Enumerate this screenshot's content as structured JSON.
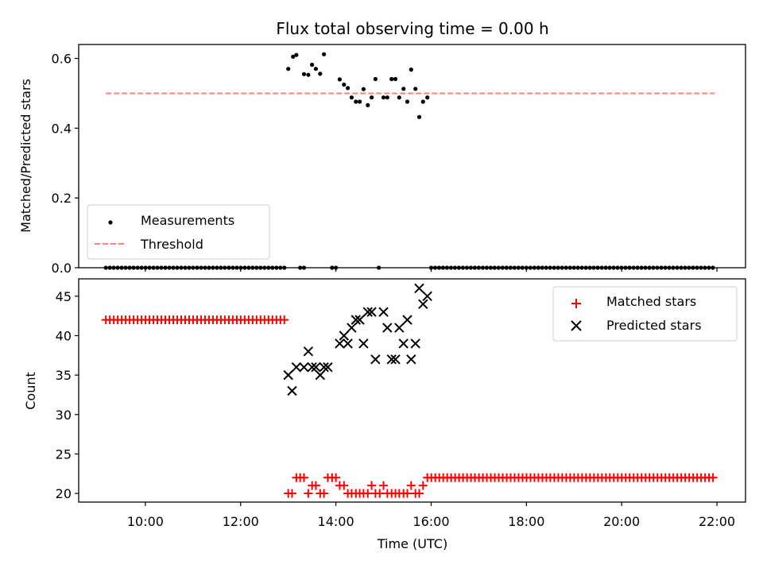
{
  "chart_data": [
    {
      "type": "scatter",
      "title": "Flux total observing time = 0.00 h",
      "xlabel": "",
      "ylabel": "Matched/Predicted stars",
      "xlim": [
        8.6,
        22.6
      ],
      "ylim": [
        0.0,
        0.64
      ],
      "yticks": [
        0.0,
        0.2,
        0.4,
        0.6
      ],
      "ytick_labels": [
        "0.0",
        "0.2",
        "0.4",
        "0.6"
      ],
      "grid": false,
      "legend": {
        "placement": "lower-left",
        "entries": [
          "Measurements",
          "Threshold"
        ]
      },
      "series": [
        {
          "name": "Measurements",
          "color": "#000000",
          "marker": "dot",
          "x_units": "hours (UTC)",
          "zero_points": {
            "x_start": 9.17,
            "x_end": 12.93,
            "step": 0.0833
          },
          "zero_points_extra": [
            13.25,
            13.33,
            13.92,
            14.0,
            14.9
          ],
          "zero_points_late": {
            "x_start": 16.0,
            "x_end": 21.95,
            "step": 0.0833
          },
          "points": [
            [
              13.0,
              0.57
            ],
            [
              13.1,
              0.605
            ],
            [
              13.17,
              0.61
            ],
            [
              13.33,
              0.555
            ],
            [
              13.42,
              0.553
            ],
            [
              13.5,
              0.582
            ],
            [
              13.58,
              0.57
            ],
            [
              13.67,
              0.556
            ],
            [
              13.75,
              0.612
            ],
            [
              14.08,
              0.54
            ],
            [
              14.17,
              0.525
            ],
            [
              14.25,
              0.515
            ],
            [
              14.33,
              0.488
            ],
            [
              14.42,
              0.476
            ],
            [
              14.5,
              0.476
            ],
            [
              14.58,
              0.512
            ],
            [
              14.67,
              0.466
            ],
            [
              14.75,
              0.488
            ],
            [
              14.83,
              0.541
            ],
            [
              15.0,
              0.488
            ],
            [
              15.08,
              0.488
            ],
            [
              15.17,
              0.541
            ],
            [
              15.25,
              0.541
            ],
            [
              15.33,
              0.488
            ],
            [
              15.42,
              0.513
            ],
            [
              15.5,
              0.476
            ],
            [
              15.58,
              0.568
            ],
            [
              15.67,
              0.513
            ],
            [
              15.75,
              0.432
            ],
            [
              15.83,
              0.476
            ],
            [
              15.92,
              0.488
            ]
          ]
        },
        {
          "name": "Threshold",
          "color": "#ff7f7f",
          "style": "dashed",
          "x": [
            9.17,
            21.95
          ],
          "y": [
            0.5,
            0.5
          ]
        }
      ]
    },
    {
      "type": "scatter",
      "title": "",
      "xlabel": "Time (UTC)",
      "ylabel": "Count",
      "xlim": [
        8.6,
        22.6
      ],
      "ylim": [
        18.9,
        47.2
      ],
      "xticks": [
        10,
        12,
        14,
        16,
        18,
        20,
        22
      ],
      "xtick_labels": [
        "10:00",
        "12:00",
        "14:00",
        "16:00",
        "18:00",
        "20:00",
        "22:00"
      ],
      "yticks": [
        20,
        25,
        30,
        35,
        40,
        45
      ],
      "ytick_labels": [
        "20",
        "25",
        "30",
        "35",
        "40",
        "45"
      ],
      "grid": false,
      "legend": {
        "placement": "top-right",
        "entries": [
          "Matched stars",
          "Predicted stars"
        ]
      },
      "series": [
        {
          "name": "Matched stars",
          "color": "#ff0000",
          "marker": "plus",
          "constant_early": {
            "x_start": 9.17,
            "x_end": 12.93,
            "step": 0.0833,
            "y": 42
          },
          "constant_late": {
            "x_start": 15.92,
            "x_end": 21.95,
            "step": 0.0833,
            "y": 22
          },
          "points": [
            [
              13.0,
              20
            ],
            [
              13.08,
              20
            ],
            [
              13.17,
              22
            ],
            [
              13.25,
              22
            ],
            [
              13.33,
              22
            ],
            [
              13.42,
              20
            ],
            [
              13.5,
              21
            ],
            [
              13.58,
              21
            ],
            [
              13.67,
              20
            ],
            [
              13.75,
              20
            ],
            [
              13.83,
              22
            ],
            [
              13.92,
              22
            ],
            [
              14.0,
              22
            ],
            [
              14.08,
              21
            ],
            [
              14.17,
              21
            ],
            [
              14.25,
              20
            ],
            [
              14.33,
              20
            ],
            [
              14.42,
              20
            ],
            [
              14.5,
              20
            ],
            [
              14.58,
              20
            ],
            [
              14.67,
              20
            ],
            [
              14.75,
              21
            ],
            [
              14.83,
              20
            ],
            [
              14.92,
              20
            ],
            [
              15.0,
              21
            ],
            [
              15.08,
              20
            ],
            [
              15.17,
              20
            ],
            [
              15.25,
              20
            ],
            [
              15.33,
              20
            ],
            [
              15.42,
              20
            ],
            [
              15.5,
              20
            ],
            [
              15.58,
              21
            ],
            [
              15.67,
              20
            ],
            [
              15.75,
              20
            ],
            [
              15.83,
              21
            ]
          ]
        },
        {
          "name": "Predicted stars",
          "color": "#000000",
          "marker": "x",
          "points": [
            [
              13.0,
              35
            ],
            [
              13.08,
              33
            ],
            [
              13.17,
              36
            ],
            [
              13.33,
              36
            ],
            [
              13.42,
              38
            ],
            [
              13.5,
              36
            ],
            [
              13.58,
              36
            ],
            [
              13.67,
              35
            ],
            [
              13.75,
              36
            ],
            [
              13.83,
              36
            ],
            [
              14.08,
              39
            ],
            [
              14.17,
              40
            ],
            [
              14.25,
              39
            ],
            [
              14.33,
              41
            ],
            [
              14.42,
              42
            ],
            [
              14.5,
              42
            ],
            [
              14.58,
              39
            ],
            [
              14.67,
              43
            ],
            [
              14.75,
              43
            ],
            [
              14.83,
              37
            ],
            [
              15.0,
              43
            ],
            [
              15.08,
              41
            ],
            [
              15.17,
              37
            ],
            [
              15.25,
              37
            ],
            [
              15.33,
              41
            ],
            [
              15.42,
              39
            ],
            [
              15.5,
              42
            ],
            [
              15.58,
              37
            ],
            [
              15.67,
              39
            ],
            [
              15.75,
              46
            ],
            [
              15.83,
              44
            ],
            [
              15.92,
              45
            ]
          ]
        }
      ]
    }
  ]
}
